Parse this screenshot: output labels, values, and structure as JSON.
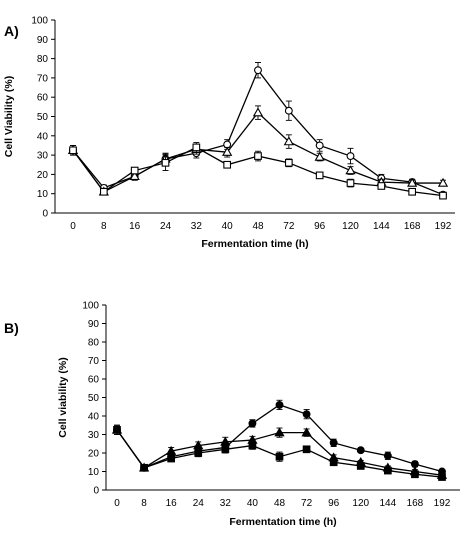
{
  "chart_data": [
    {
      "type": "line",
      "panel_label": "A)",
      "xlabel": "Fermentation time  (h)",
      "ylabel": "Cell Viability (%)",
      "ylim": [
        0,
        100
      ],
      "yticks": [
        0,
        10,
        20,
        30,
        40,
        50,
        60,
        70,
        80,
        90,
        100
      ],
      "categories": [
        "0",
        "8",
        "16",
        "24",
        "32",
        "40",
        "48",
        "72",
        "96",
        "120",
        "144",
        "168",
        "192"
      ],
      "grid": false,
      "series": [
        {
          "marker": "circle-open",
          "values": [
            32.5,
            13,
            19,
            28,
            31,
            35.5,
            74,
            53,
            35,
            29.5,
            18,
            16,
            9.5
          ],
          "errors": [
            2.5,
            1.5,
            2,
            3,
            2.5,
            2.5,
            4,
            5,
            3,
            4,
            2,
            1.5,
            1
          ]
        },
        {
          "marker": "triangle-open",
          "values": [
            32.5,
            11,
            19,
            28,
            33,
            31.5,
            52,
            37,
            29,
            22,
            16,
            15.5,
            15.5
          ],
          "errors": [
            2.5,
            1.5,
            2,
            2.5,
            2.5,
            2.5,
            3.5,
            3.5,
            2,
            2,
            1.5,
            1.5,
            1.5
          ]
        },
        {
          "marker": "square-open",
          "values": [
            32.5,
            11,
            22,
            26,
            34,
            25,
            29.5,
            26,
            19.5,
            15.5,
            14,
            11,
            9
          ],
          "errors": [
            2.5,
            1.5,
            1.5,
            4,
            2.5,
            1.5,
            2.5,
            2,
            1.5,
            2,
            1.5,
            1,
            1
          ]
        }
      ]
    },
    {
      "type": "line",
      "panel_label": "B)",
      "xlabel": "Fermentation time (h)",
      "ylabel": "Cell viability (%)",
      "ylim": [
        0,
        100
      ],
      "yticks": [
        0,
        10,
        20,
        30,
        40,
        50,
        60,
        70,
        80,
        90,
        100
      ],
      "categories": [
        "0",
        "8",
        "16",
        "24",
        "32",
        "40",
        "48",
        "72",
        "96",
        "120",
        "144",
        "168",
        "192"
      ],
      "grid": false,
      "series": [
        {
          "marker": "circle-filled",
          "values": [
            32.5,
            12,
            18,
            21,
            23,
            36,
            46,
            41,
            25.5,
            21.5,
            18.5,
            14,
            10
          ],
          "errors": [
            2.5,
            1.5,
            1.5,
            2,
            2,
            2,
            2.5,
            2.5,
            2,
            1,
            2,
            1.5,
            1
          ]
        },
        {
          "marker": "triangle-filled",
          "values": [
            32.5,
            12,
            21,
            24,
            26,
            27,
            31,
            31,
            17.5,
            15,
            12,
            10,
            8
          ],
          "errors": [
            2.5,
            1.5,
            2,
            2,
            2.5,
            2,
            2.5,
            2,
            1.5,
            1,
            1,
            1,
            1
          ]
        },
        {
          "marker": "square-filled",
          "values": [
            32.5,
            12,
            17,
            20,
            22,
            24,
            18,
            22,
            15,
            13,
            10.5,
            8.5,
            7
          ],
          "errors": [
            2.5,
            1,
            1.5,
            2,
            2,
            2,
            2.5,
            1.5,
            1.5,
            1,
            1,
            1,
            1
          ]
        }
      ]
    }
  ]
}
